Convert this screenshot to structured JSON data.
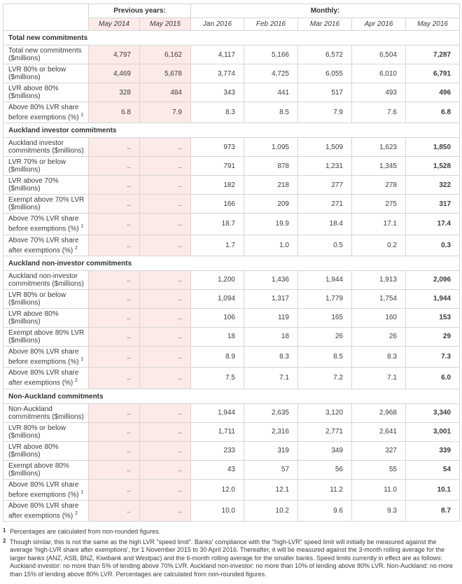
{
  "chart_data": {
    "type": "table",
    "column_groups": [
      {
        "label": "Previous years:",
        "span": 2
      },
      {
        "label": "Monthly:",
        "span": 5
      }
    ],
    "columns": [
      "May 2014",
      "May 2015",
      "Jan 2016",
      "Feb 2016",
      "Mar 2016",
      "Apr 2016",
      "May 2016"
    ],
    "sections": [
      {
        "title": "Total new commitments",
        "rows": [
          {
            "label": "Total new commitments ($millions)",
            "footnote": "",
            "values": [
              "4,797",
              "6,162",
              "4,117",
              "5,166",
              "6,572",
              "6,504",
              "7,287"
            ]
          },
          {
            "label": "LVR 80% or below ($millions)",
            "footnote": "",
            "values": [
              "4,469",
              "5,678",
              "3,774",
              "4,725",
              "6,055",
              "6,010",
              "6,791"
            ]
          },
          {
            "label": "LVR above 80% ($millions)",
            "footnote": "",
            "values": [
              "328",
              "484",
              "343",
              "441",
              "517",
              "493",
              "496"
            ]
          },
          {
            "label": "Above 80% LVR share before exemptions (%)",
            "footnote": "1",
            "values": [
              "6.8",
              "7.9",
              "8.3",
              "8.5",
              "7.9",
              "7.6",
              "6.8"
            ]
          }
        ]
      },
      {
        "title": "Auckland investor commitments",
        "rows": [
          {
            "label": "Auckland investor commitments ($millions)",
            "footnote": "",
            "values": [
              "..",
              "..",
              "973",
              "1,095",
              "1,509",
              "1,623",
              "1,850"
            ]
          },
          {
            "label": "LVR 70% or below ($millions)",
            "footnote": "",
            "values": [
              "..",
              "..",
              "791",
              "878",
              "1,231",
              "1,345",
              "1,528"
            ]
          },
          {
            "label": "LVR above 70% ($millions)",
            "footnote": "",
            "values": [
              "..",
              "..",
              "182",
              "218",
              "277",
              "278",
              "322"
            ]
          },
          {
            "label": "Exempt above 70% LVR ($millions)",
            "footnote": "",
            "values": [
              "..",
              "..",
              "166",
              "209",
              "271",
              "275",
              "317"
            ]
          },
          {
            "label": "Above 70% LVR share before exemptions (%)",
            "footnote": "1",
            "values": [
              "..",
              "..",
              "18.7",
              "19.9",
              "18.4",
              "17.1",
              "17.4"
            ]
          },
          {
            "label": "Above 70% LVR share after exemptions (%)",
            "footnote": "2",
            "values": [
              "..",
              "..",
              "1.7",
              "1.0",
              "0.5",
              "0.2",
              "0.3"
            ]
          }
        ]
      },
      {
        "title": "Auckland non-investor commitments",
        "rows": [
          {
            "label": "Auckland non-investor commitments ($millions)",
            "footnote": "",
            "values": [
              "..",
              "..",
              "1,200",
              "1,436",
              "1,944",
              "1,913",
              "2,096"
            ]
          },
          {
            "label": "LVR 80% or below ($millions)",
            "footnote": "",
            "values": [
              "..",
              "..",
              "1,094",
              "1,317",
              "1,779",
              "1,754",
              "1,944"
            ]
          },
          {
            "label": "LVR above 80% ($millions)",
            "footnote": "",
            "values": [
              "..",
              "..",
              "106",
              "119",
              "165",
              "160",
              "153"
            ]
          },
          {
            "label": "Exempt above 80% LVR ($millions)",
            "footnote": "",
            "values": [
              "..",
              "..",
              "18",
              "18",
              "26",
              "26",
              "29"
            ]
          },
          {
            "label": "Above 80% LVR share before exemptions (%)",
            "footnote": "1",
            "values": [
              "..",
              "..",
              "8.9",
              "8.3",
              "8.5",
              "8.3",
              "7.3"
            ]
          },
          {
            "label": "Above 80% LVR share after exemptions (%)",
            "footnote": "2",
            "values": [
              "..",
              "..",
              "7.5",
              "7.1",
              "7.2",
              "7.1",
              "6.0"
            ]
          }
        ]
      },
      {
        "title": "Non-Auckland commitments",
        "rows": [
          {
            "label": "Non-Auckland commitments ($millions)",
            "footnote": "",
            "values": [
              "..",
              "..",
              "1,944",
              "2,635",
              "3,120",
              "2,968",
              "3,340"
            ]
          },
          {
            "label": "LVR 80% or below ($millions)",
            "footnote": "",
            "values": [
              "..",
              "..",
              "1,711",
              "2,316",
              "2,771",
              "2,641",
              "3,001"
            ]
          },
          {
            "label": "LVR above 80% ($millions)",
            "footnote": "",
            "values": [
              "..",
              "..",
              "233",
              "319",
              "349",
              "327",
              "339"
            ]
          },
          {
            "label": "Exempt above 80% ($millions)",
            "footnote": "",
            "values": [
              "..",
              "..",
              "43",
              "57",
              "56",
              "55",
              "54"
            ]
          },
          {
            "label": "Above 80% LVR share before exemptions (%)",
            "footnote": "1",
            "values": [
              "..",
              "..",
              "12.0",
              "12.1",
              "11.2",
              "11.0",
              "10.1"
            ]
          },
          {
            "label": "Above 80% LVR share after exemptions (%)",
            "footnote": "2",
            "values": [
              "..",
              "..",
              "10.0",
              "10.2",
              "9.6",
              "9.3",
              "8.7"
            ]
          }
        ]
      }
    ]
  },
  "footnotes": [
    {
      "marker": "1",
      "text": "Percentages are calculated from non-rounded figures."
    },
    {
      "marker": "2",
      "text": "Though similar, this is not the same as the high LVR \"speed limit\". Banks' compliance with the \"high-LVR\" speed limit will initially be measured against the average 'high-LVR share after exemptions', for 1 November 2015 to 30 April 2016. Thereafter, it will be measured against the 3-month rolling average for the larger banks (ANZ, ASB, BNZ, Kiwibank and Westpac) and the 6-month rolling average for the smaller banks. Speed limits currently in effect are as follows: Auckland investor: no more than 5% of lending above 70% LVR. Auckland non-investor: no more than 10% of lending above 80% LVR. Non-Auckland: no more than 15% of lending above 80% LVR. Percentages are calculated from non-rounded figures."
    }
  ],
  "colors": {
    "highlight": "#fbeae7",
    "border": "#d5d5d5",
    "text": "#3b3b3b"
  }
}
